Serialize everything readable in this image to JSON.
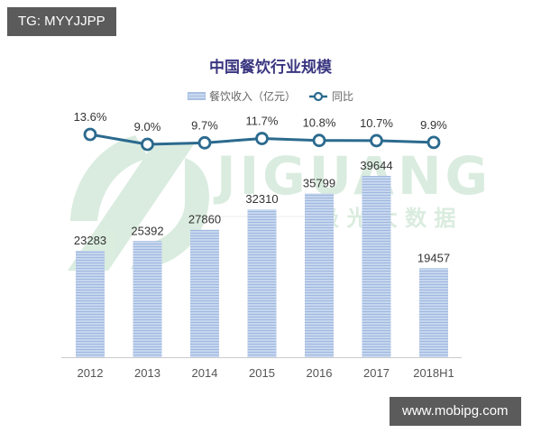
{
  "overlay": {
    "top_left_tag": "TG: MYYJJPP",
    "bottom_right_tag": "www.mobipg.com"
  },
  "watermark": {
    "brand": "JIGUANG",
    "subtitle": "极 光 大 数 据",
    "color": "#d6ebdc"
  },
  "chart_data": {
    "type": "bar",
    "title": "中国餐饮行业规模",
    "categories": [
      "2012",
      "2013",
      "2014",
      "2015",
      "2016",
      "2017",
      "2018H1"
    ],
    "series": [
      {
        "name": "餐饮收入（亿元）",
        "type": "bar",
        "values": [
          23283,
          25392,
          27860,
          32310,
          35799,
          39644,
          19457
        ],
        "labels": [
          "23283",
          "25392",
          "27860",
          "32310",
          "35799",
          "39644",
          "19457"
        ],
        "color": "#b7cbe8"
      },
      {
        "name": "同比",
        "type": "line",
        "values": [
          13.6,
          9.0,
          9.7,
          11.7,
          10.8,
          10.7,
          9.9
        ],
        "labels": [
          "13.6%",
          "9.0%",
          "9.7%",
          "11.7%",
          "10.8%",
          "10.7%",
          "9.9%"
        ],
        "color": "#2b6a8e"
      }
    ],
    "xlabel": "",
    "ylabel": "",
    "legend_position": "top",
    "grid": false,
    "y_axis_visible": false
  }
}
